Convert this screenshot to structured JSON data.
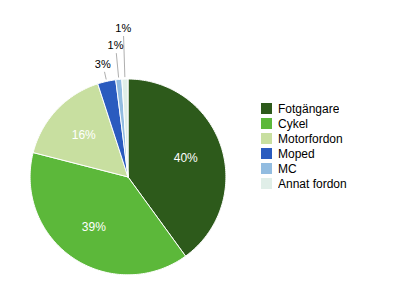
{
  "chart_data": {
    "type": "pie",
    "categories": [
      "Fotgängare",
      "Cykel",
      "Motorfordon",
      "Moped",
      "MC",
      "Annat fordon"
    ],
    "values": [
      40,
      39,
      16,
      3,
      1,
      1
    ],
    "value_labels": [
      "40%",
      "39%",
      "16%",
      "3%",
      "1%",
      "1%"
    ],
    "colors": [
      "#2d5a1b",
      "#5cb83a",
      "#c8dfa0",
      "#2a5bbf",
      "#92bce0",
      "#e0eee8"
    ],
    "data_labels": true,
    "legend": "right"
  }
}
